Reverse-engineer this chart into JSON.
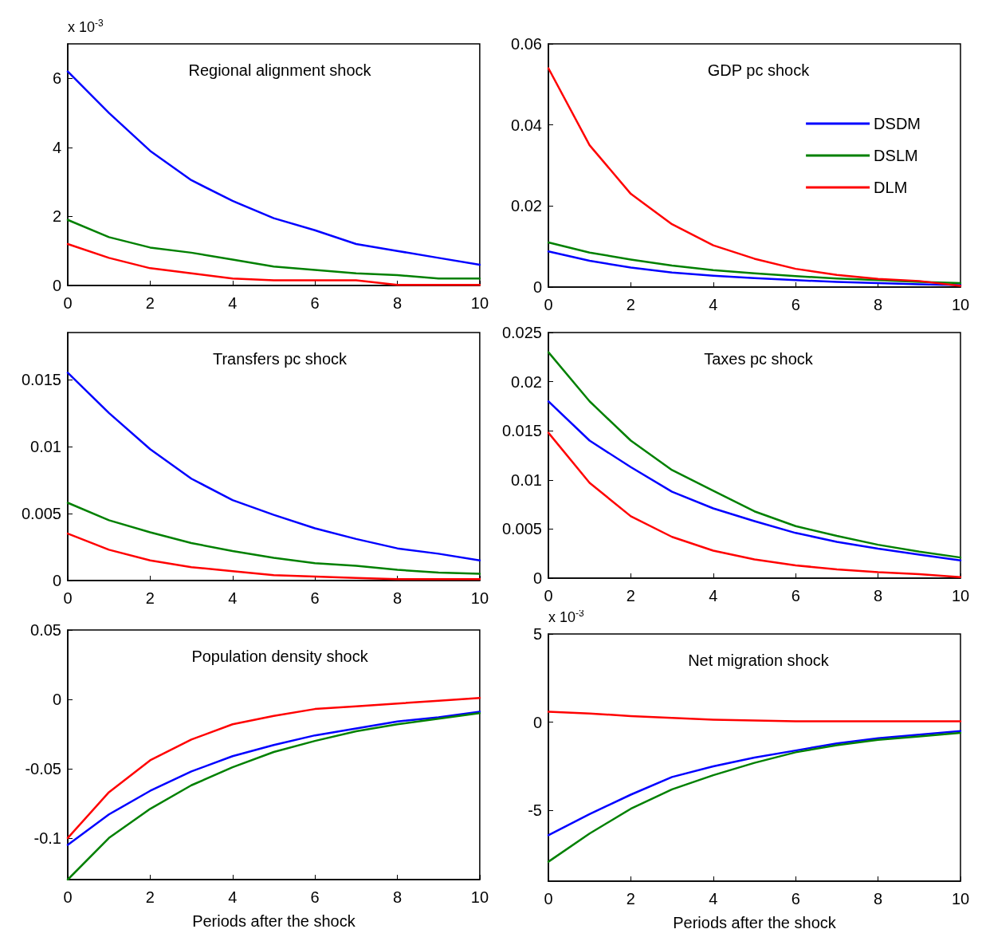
{
  "chart_data": [
    {
      "type": "line",
      "title": "Regional alignment shock",
      "annotations": [
        "x 10$^{-3}$"
      ],
      "x": [
        0,
        1,
        2,
        3,
        4,
        5,
        6,
        7,
        8,
        9,
        10
      ],
      "xlim": [
        0,
        10
      ],
      "xticks": [
        0,
        2,
        4,
        6,
        8,
        10
      ],
      "ylim": [
        0,
        7
      ],
      "yticks": [
        0,
        2,
        4,
        6
      ],
      "series": [
        {
          "color": "#0000ff",
          "values": [
            6.2,
            5.0,
            3.9,
            3.05,
            2.45,
            1.95,
            1.6,
            1.2,
            1.0,
            0.8,
            0.6
          ]
        },
        {
          "color": "#008000",
          "values": [
            1.9,
            1.4,
            1.1,
            0.95,
            0.75,
            0.55,
            0.45,
            0.35,
            0.3,
            0.2,
            0.2
          ]
        },
        {
          "color": "#ff0000",
          "values": [
            1.2,
            0.8,
            0.5,
            0.35,
            0.2,
            0.15,
            0.15,
            0.15,
            0.02,
            0.02,
            0.02
          ]
        }
      ]
    },
    {
      "type": "line",
      "title": "GDP pc shock",
      "x": [
        0,
        1,
        2,
        3,
        4,
        5,
        6,
        7,
        8,
        9,
        10
      ],
      "xlim": [
        0,
        10
      ],
      "xticks": [
        0,
        2,
        4,
        6,
        8,
        10
      ],
      "ylim": [
        0,
        0.06
      ],
      "yticks": [
        0,
        0.02,
        0.04,
        0.06
      ],
      "legend": "right",
      "series": [
        {
          "name": "DSDM",
          "color": "#0000ff",
          "values": [
            0.0088,
            0.0065,
            0.0048,
            0.0036,
            0.0028,
            0.0022,
            0.0017,
            0.0013,
            0.001,
            0.0007,
            0.0005
          ]
        },
        {
          "name": "DSLM",
          "color": "#008000",
          "values": [
            0.011,
            0.0085,
            0.0068,
            0.0053,
            0.0042,
            0.0034,
            0.0027,
            0.0021,
            0.0017,
            0.0013,
            0.001
          ]
        },
        {
          "name": "DLM",
          "color": "#ff0000",
          "values": [
            0.054,
            0.035,
            0.023,
            0.0155,
            0.0103,
            0.007,
            0.0045,
            0.003,
            0.002,
            0.0015,
            0.0003
          ]
        }
      ]
    },
    {
      "type": "line",
      "title": "Transfers pc shock",
      "x": [
        0,
        1,
        2,
        3,
        4,
        5,
        6,
        7,
        8,
        9,
        10
      ],
      "xlim": [
        0,
        10
      ],
      "xticks": [
        0,
        2,
        4,
        6,
        8,
        10
      ],
      "ylim": [
        0,
        0.0185
      ],
      "yticks": [
        0,
        0.005,
        0.01,
        0.015
      ],
      "series": [
        {
          "color": "#0000ff",
          "values": [
            0.0155,
            0.0125,
            0.0098,
            0.0076,
            0.006,
            0.0049,
            0.0039,
            0.0031,
            0.0024,
            0.002,
            0.0015
          ]
        },
        {
          "color": "#008000",
          "values": [
            0.0058,
            0.0045,
            0.0036,
            0.0028,
            0.0022,
            0.0017,
            0.0013,
            0.0011,
            0.0008,
            0.0006,
            0.0005
          ]
        },
        {
          "color": "#ff0000",
          "values": [
            0.0035,
            0.0023,
            0.0015,
            0.001,
            0.0007,
            0.0004,
            0.0003,
            0.0002,
            0.0001,
            0.0001,
            0.0001
          ]
        }
      ]
    },
    {
      "type": "line",
      "title": "Taxes pc shock",
      "x": [
        0,
        1,
        2,
        3,
        4,
        5,
        6,
        7,
        8,
        9,
        10
      ],
      "xlim": [
        0,
        10
      ],
      "xticks": [
        0,
        2,
        4,
        6,
        8,
        10
      ],
      "ylim": [
        0,
        0.025
      ],
      "yticks": [
        0,
        0.005,
        0.01,
        0.015,
        0.02,
        0.025
      ],
      "series": [
        {
          "color": "#0000ff",
          "values": [
            0.018,
            0.014,
            0.0113,
            0.0088,
            0.0071,
            0.0058,
            0.0046,
            0.0037,
            0.003,
            0.0024,
            0.0018
          ]
        },
        {
          "color": "#008000",
          "values": [
            0.023,
            0.018,
            0.014,
            0.011,
            0.0089,
            0.0068,
            0.0053,
            0.0043,
            0.0034,
            0.0027,
            0.0021
          ]
        },
        {
          "color": "#ff0000",
          "values": [
            0.0148,
            0.0097,
            0.0063,
            0.0042,
            0.0028,
            0.0019,
            0.0013,
            0.0009,
            0.0006,
            0.0004,
            0.0001
          ]
        }
      ]
    },
    {
      "type": "line",
      "title": "Population density shock",
      "xlabel": "Periods after the shock",
      "x": [
        0,
        1,
        2,
        3,
        4,
        5,
        6,
        7,
        8,
        9,
        10
      ],
      "xlim": [
        0,
        10
      ],
      "xticks": [
        0,
        2,
        4,
        6,
        8,
        10
      ],
      "ylim": [
        -0.13,
        0.05
      ],
      "yticks": [
        -0.1,
        -0.05,
        0,
        0.05
      ],
      "series": [
        {
          "color": "#0000ff",
          "values": [
            -0.105,
            -0.083,
            -0.066,
            -0.052,
            -0.041,
            -0.033,
            -0.026,
            -0.021,
            -0.016,
            -0.013,
            -0.009
          ]
        },
        {
          "color": "#008000",
          "values": [
            -0.13,
            -0.1,
            -0.079,
            -0.062,
            -0.049,
            -0.038,
            -0.03,
            -0.023,
            -0.018,
            -0.014,
            -0.01
          ]
        },
        {
          "color": "#ff0000",
          "values": [
            -0.1,
            -0.067,
            -0.044,
            -0.029,
            -0.018,
            -0.012,
            -0.007,
            -0.005,
            -0.003,
            -0.001,
            0.001
          ]
        }
      ]
    },
    {
      "type": "line",
      "title": "Net migration shock",
      "xlabel": "Periods after the shock",
      "annotations": [
        "x 10$^{-3}$"
      ],
      "x": [
        0,
        1,
        2,
        3,
        4,
        5,
        6,
        7,
        8,
        9,
        10
      ],
      "xlim": [
        0,
        10
      ],
      "xticks": [
        0,
        2,
        4,
        6,
        8,
        10
      ],
      "ylim": [
        -9,
        5
      ],
      "yticks": [
        -5,
        0,
        5
      ],
      "series": [
        {
          "color": "#0000ff",
          "values": [
            -6.4,
            -5.2,
            -4.1,
            -3.1,
            -2.5,
            -2,
            -1.6,
            -1.2,
            -0.9,
            -0.7,
            -0.5
          ]
        },
        {
          "color": "#008000",
          "values": [
            -7.9,
            -6.3,
            -4.9,
            -3.8,
            -3,
            -2.3,
            -1.7,
            -1.3,
            -1,
            -0.8,
            -0.6
          ]
        },
        {
          "color": "#ff0000",
          "values": [
            0.6,
            0.5,
            0.35,
            0.25,
            0.15,
            0.1,
            0.05,
            0.05,
            0.05,
            0.05,
            0.05
          ]
        }
      ]
    }
  ]
}
